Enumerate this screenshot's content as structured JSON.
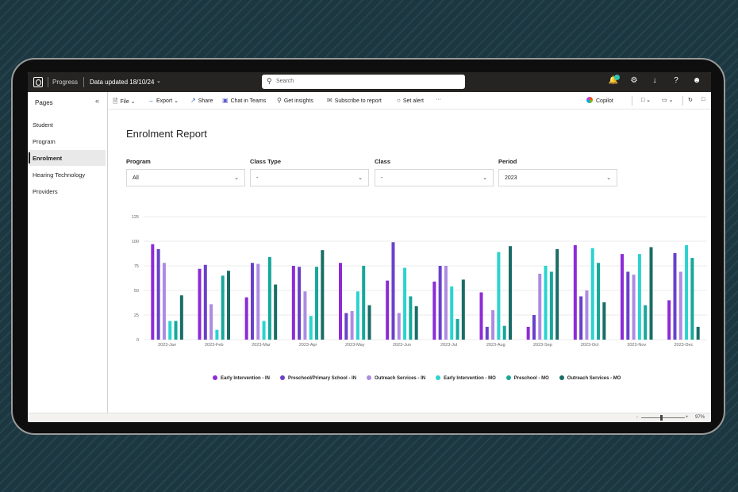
{
  "topbar": {
    "app_name": "Progress",
    "data_updated": "Data updated 18/10/24",
    "search_placeholder": "Search"
  },
  "sidebar": {
    "title": "Pages",
    "items": [
      {
        "label": "Student"
      },
      {
        "label": "Program"
      },
      {
        "label": "Enrolment",
        "active": true
      },
      {
        "label": "Hearing Technology"
      },
      {
        "label": "Providers"
      }
    ]
  },
  "toolbar": {
    "file": "File",
    "export": "Export",
    "share": "Share",
    "chat": "Chat in Teams",
    "insights": "Get insights",
    "subscribe": "Subscribe to report",
    "alert": "Set alert",
    "more": "···",
    "copilot": "Copilot"
  },
  "report": {
    "title": "Enrolment Report",
    "slicers": [
      {
        "label": "Program",
        "value": "All"
      },
      {
        "label": "Class Type",
        "value": "-"
      },
      {
        "label": "Class",
        "value": "-"
      },
      {
        "label": "Period",
        "value": "2023"
      }
    ]
  },
  "chart_data": {
    "type": "bar",
    "categories": [
      "2023-Jan",
      "2023-Feb",
      "2023-Mar",
      "2023-Apr",
      "2023-May",
      "2023-Jun",
      "2023-Jul",
      "2023-Aug",
      "2023-Sep",
      "2023-Oct",
      "2023-Nov",
      "2023-Dec"
    ],
    "y_ticks": [
      0,
      25,
      50,
      75,
      100,
      125
    ],
    "ylim": [
      0,
      125
    ],
    "grid": true,
    "legend_position": "bottom",
    "series": [
      {
        "name": "Early Intervention - IN",
        "color": "#8d2bd6",
        "values": [
          97,
          72,
          43,
          75,
          78,
          60,
          59,
          48,
          13,
          96,
          87,
          40
        ]
      },
      {
        "name": "Preschool/Primary School - IN",
        "color": "#6941c9",
        "values": [
          92,
          76,
          78,
          74,
          27,
          99,
          75,
          13,
          25,
          44,
          69,
          88
        ]
      },
      {
        "name": "Outreach Services - IN",
        "color": "#ad8be3",
        "values": [
          78,
          36,
          77,
          49,
          29,
          27,
          75,
          30,
          67,
          50,
          66,
          69
        ]
      },
      {
        "name": "Early Intervention - MO",
        "color": "#2bd3cf",
        "values": [
          19,
          10,
          19,
          24,
          49,
          73,
          54,
          89,
          75,
          93,
          87,
          96
        ]
      },
      {
        "name": "Preschool - MO",
        "color": "#16a89a",
        "values": [
          19,
          65,
          84,
          74,
          75,
          44,
          21,
          14,
          69,
          78,
          35,
          83
        ]
      },
      {
        "name": "Outreach Services - MO",
        "color": "#196d66",
        "values": [
          45,
          70,
          56,
          91,
          35,
          34,
          61,
          95,
          92,
          38,
          94,
          13
        ]
      }
    ]
  },
  "status": {
    "zoom": "97%",
    "minus": "-",
    "plus": "+"
  }
}
